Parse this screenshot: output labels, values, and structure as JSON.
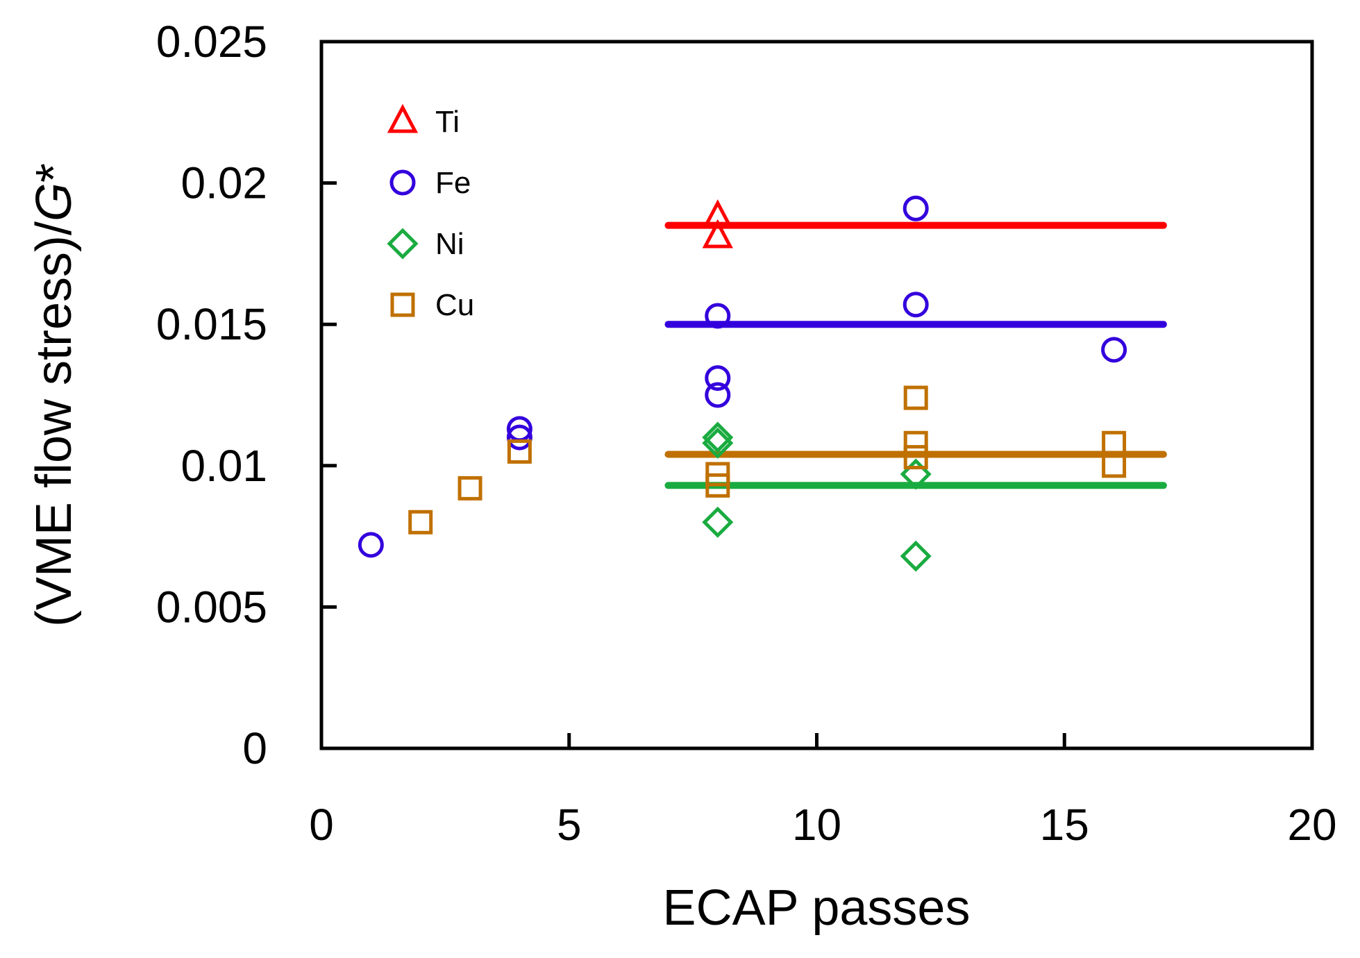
{
  "chart_data": {
    "type": "scatter",
    "title": "",
    "xlabel": "ECAP passes",
    "ylabel_parts": [
      "(VME flow stress)/",
      "G",
      "*"
    ],
    "xlim": [
      0,
      20
    ],
    "ylim": [
      0,
      0.025
    ],
    "xticks": [
      0,
      5,
      10,
      15,
      20
    ],
    "xtick_labels": [
      "0",
      "5",
      "10",
      "15",
      "20"
    ],
    "yticks": [
      0,
      0.005,
      0.01,
      0.015,
      0.02,
      0.025
    ],
    "ytick_labels": [
      "0",
      "0.005",
      "0.01",
      "0.015",
      "0.02",
      "0.025"
    ],
    "grid": false,
    "legend_position": "top-left",
    "series": [
      {
        "name": "Ti",
        "marker": "triangle",
        "color": "#ff0000",
        "points": [
          [
            8,
            0.0188
          ],
          [
            8,
            0.0181
          ]
        ],
        "fit_line": {
          "x": [
            7,
            17
          ],
          "y": 0.0185
        }
      },
      {
        "name": "Fe",
        "marker": "circle",
        "color": "#3300dd",
        "points": [
          [
            1,
            0.0072
          ],
          [
            4,
            0.0113
          ],
          [
            4,
            0.011
          ],
          [
            8,
            0.0153
          ],
          [
            8,
            0.0131
          ],
          [
            8,
            0.0125
          ],
          [
            12,
            0.0191
          ],
          [
            12,
            0.0157
          ],
          [
            16,
            0.0141
          ]
        ],
        "fit_line": {
          "x": [
            7,
            17
          ],
          "y": 0.015
        }
      },
      {
        "name": "Ni",
        "marker": "diamond",
        "color": "#1aab40",
        "points": [
          [
            8,
            0.011
          ],
          [
            8,
            0.0108
          ],
          [
            8,
            0.008
          ],
          [
            12,
            0.0097
          ],
          [
            12,
            0.0068
          ]
        ],
        "fit_line": {
          "x": [
            7,
            17
          ],
          "y": 0.0093
        }
      },
      {
        "name": "Cu",
        "marker": "square",
        "color": "#c07000",
        "points": [
          [
            2,
            0.008
          ],
          [
            3,
            0.0092
          ],
          [
            4,
            0.0105
          ],
          [
            8,
            0.0097
          ],
          [
            8,
            0.0093
          ],
          [
            12,
            0.0124
          ],
          [
            12,
            0.0108
          ],
          [
            12,
            0.0103
          ],
          [
            16,
            0.0108
          ],
          [
            16,
            0.01
          ]
        ],
        "fit_line": {
          "x": [
            7,
            17
          ],
          "y": 0.0104
        }
      }
    ]
  }
}
